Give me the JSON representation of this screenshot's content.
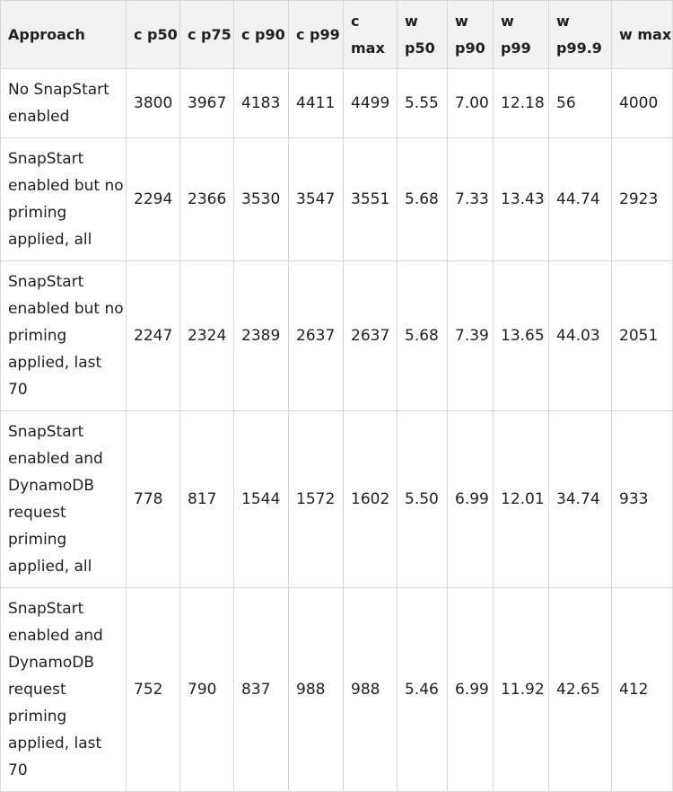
{
  "table": {
    "headers": [
      "Approach",
      "c p50",
      "c p75",
      "c p90",
      "c p99",
      "c max",
      "w p50",
      "w p90",
      "w p99",
      "w p99.9",
      "w max"
    ],
    "rows": [
      [
        "No SnapStart enabled",
        "3800",
        "3967",
        "4183",
        "4411",
        "4499",
        "5.55",
        "7.00",
        "12.18",
        "56",
        "4000"
      ],
      [
        "SnapStart enabled but no priming applied, all",
        "2294",
        "2366",
        "3530",
        "3547",
        "3551",
        "5.68",
        "7.33",
        "13.43",
        "44.74",
        "2923"
      ],
      [
        "SnapStart enabled but no priming applied, last 70",
        "2247",
        "2324",
        "2389",
        "2637",
        "2637",
        "5.68",
        "7.39",
        "13.65",
        "44.03",
        "2051"
      ],
      [
        "SnapStart enabled and DynamoDB request priming applied, all",
        "778",
        "817",
        "1544",
        "1572",
        "1602",
        "5.50",
        "6.99",
        "12.01",
        "34.74",
        "933"
      ],
      [
        "SnapStart enabled and DynamoDB request priming applied, last 70",
        "752",
        "790",
        "837",
        "988",
        "988",
        "5.46",
        "6.99",
        "11.92",
        "42.65",
        "412"
      ]
    ]
  }
}
